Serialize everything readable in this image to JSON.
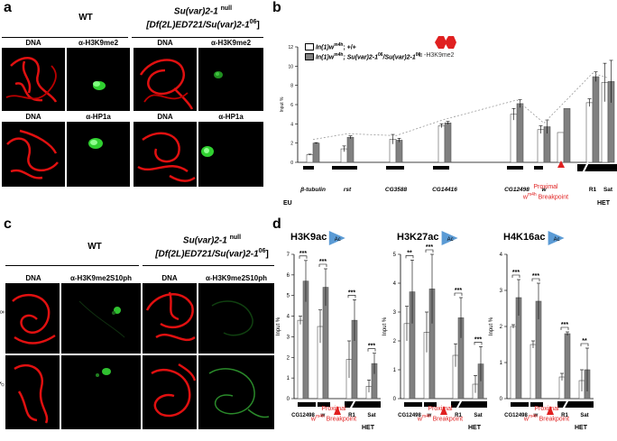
{
  "panel_a": {
    "label": "a",
    "wt_title": "WT",
    "mut_title": "Su(var)2-1",
    "mut_sup": "null",
    "mut_genotype": "[Df(2L)ED721/Su(var)2-1",
    "mut_genotype_sup": "06",
    "mut_genotype_end": "]",
    "row1": [
      "DNA",
      "α-H3K9me2",
      "DNA",
      "α-H3K9me2"
    ],
    "row2": [
      "DNA",
      "α-HP1a",
      "DNA",
      "α-HP1a"
    ]
  },
  "panel_c": {
    "label": "c",
    "wt_title": "WT",
    "mut_title": "Su(var)2-1",
    "mut_sup": "null",
    "mut_genotype": "[Df(2L)ED721/Su(var)2-1",
    "mut_genotype_sup": "06",
    "mut_genotype_end": "]",
    "cols": [
      "DNA",
      "α-H3K9me2S10ph",
      "DNA",
      "α-H3K9me2S10ph"
    ],
    "rows": [
      "♀",
      "♂"
    ]
  },
  "panel_b": {
    "label": "b",
    "legend_wt": "In(1)w",
    "legend_wt_sup": "m4h",
    "legend_wt_end": "; +/+",
    "legend_mut": "In(1)w",
    "legend_mut_sup": "m4h",
    "legend_mut_mid": "; Su(var)2-1",
    "legend_mut_sup2": "06",
    "legend_mut_mid2": "/Su(var)2-1",
    "legend_mut_sup3": "06",
    "antibody": "α -H3K9me2",
    "ylabel": "Input %",
    "yticks": [
      "0",
      "2",
      "4",
      "6",
      "8",
      "10",
      "12"
    ],
    "genes": [
      "β-tubulin",
      "rst",
      "CG3588",
      "CG14416",
      "CG12498",
      "w",
      "R1",
      "Sat"
    ],
    "eu": "EU",
    "het": "HET",
    "breakpoint_line1": "Proximal",
    "breakpoint_line2": "w",
    "breakpoint_sup": "m4h",
    "breakpoint_line2_end": " Breakpoint"
  },
  "panel_d": {
    "label": "d",
    "ylabel": "Input %",
    "het": "HET",
    "breakpoint_line1": "Proximal",
    "breakpoint_line2": "w",
    "breakpoint_sup": "m4h",
    "breakpoint_line2_end": " Breakpoint",
    "ac_badge": "Ac",
    "sig_labels": [
      "***",
      "***",
      "***",
      "***",
      "**",
      "***",
      "***",
      "***",
      "***",
      "***",
      "***",
      "**"
    ],
    "charts": [
      {
        "title": "H3K9ac",
        "ymax": 7,
        "yticks": [
          "0",
          "1",
          "2",
          "3",
          "4",
          "5",
          "6",
          "7"
        ]
      },
      {
        "title": "H3K27ac",
        "ymax": 5,
        "yticks": [
          "0",
          "1",
          "2",
          "3",
          "4",
          "5"
        ]
      },
      {
        "title": "H4K16ac",
        "ymax": 4,
        "yticks": [
          "0",
          "1",
          "2",
          "3",
          "4"
        ]
      }
    ],
    "categories": [
      "CG12498",
      "w",
      "R1",
      "Sat"
    ]
  },
  "chart_data": [
    {
      "type": "bar",
      "title": "",
      "ylabel": "Input %",
      "ylim": [
        0,
        12
      ],
      "categories": [
        "β-tubulin",
        "rst",
        "CG3588",
        "CG14416",
        "CG12498",
        "w",
        "R1",
        "Sat"
      ],
      "series": [
        {
          "name": "In(1)wm4h; +/+",
          "values": [
            0.8,
            1.4,
            2.4,
            3.8,
            5.0,
            3.4,
            6.2,
            8.3
          ],
          "errors": [
            0.05,
            0.3,
            0.5,
            0.2,
            0.6,
            0.4,
            0.4,
            2.0
          ]
        },
        {
          "name": "In(1)wm4h; Su(var)2-1 06/Su(var)2-1 06",
          "values": [
            2.0,
            2.6,
            2.3,
            4.1,
            6.1,
            3.7,
            8.9,
            8.4
          ],
          "errors": [
            0.05,
            0.15,
            0.2,
            0.15,
            0.4,
            0.7,
            0.5,
            2.2
          ]
        }
      ],
      "extra_bars": {
        "w_proximal_gray": 5.6,
        "w_proximal_white": 3.1
      }
    },
    {
      "type": "bar",
      "title": "H3K9ac",
      "ylabel": "Input %",
      "ylim": [
        0,
        7
      ],
      "categories": [
        "CG12498",
        "w",
        "R1",
        "Sat"
      ],
      "series": [
        {
          "name": "wild type",
          "values": [
            3.8,
            3.5,
            1.9,
            0.6
          ],
          "errors": [
            0.2,
            0.8,
            0.9,
            0.3
          ]
        },
        {
          "name": "Su(var)2-1 null",
          "values": [
            5.7,
            5.4,
            3.8,
            1.7
          ],
          "errors": [
            1.0,
            0.9,
            1.0,
            0.5
          ]
        }
      ]
    },
    {
      "type": "bar",
      "title": "H3K27ac",
      "ylabel": "Input %",
      "ylim": [
        0,
        5
      ],
      "categories": [
        "CG12498",
        "w",
        "R1",
        "Sat"
      ],
      "series": [
        {
          "name": "wild type",
          "values": [
            2.6,
            2.3,
            1.5,
            0.5
          ],
          "errors": [
            0.6,
            0.7,
            0.4,
            0.3
          ]
        },
        {
          "name": "Su(var)2-1 null",
          "values": [
            3.7,
            3.8,
            2.8,
            1.2
          ],
          "errors": [
            1.1,
            1.2,
            0.7,
            0.6
          ]
        }
      ]
    },
    {
      "type": "bar",
      "title": "H4K16ac",
      "ylabel": "Input %",
      "ylim": [
        0,
        4
      ],
      "categories": [
        "CG12498",
        "w",
        "R1",
        "Sat"
      ],
      "series": [
        {
          "name": "wild type",
          "values": [
            2.0,
            1.5,
            0.6,
            0.5
          ],
          "errors": [
            0.05,
            0.1,
            0.1,
            0.3
          ]
        },
        {
          "name": "Su(var)2-1 null",
          "values": [
            2.8,
            2.7,
            1.8,
            0.8
          ],
          "errors": [
            0.5,
            0.5,
            0.05,
            0.6
          ]
        }
      ]
    }
  ]
}
